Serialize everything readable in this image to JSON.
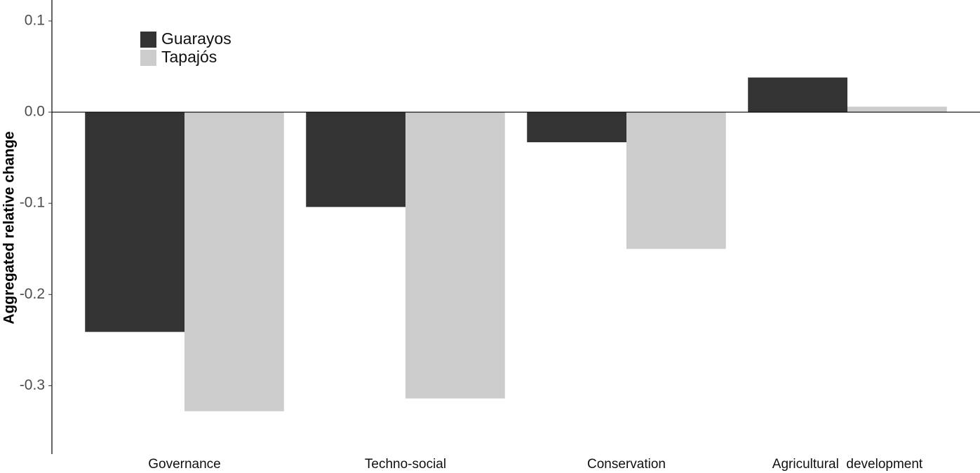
{
  "chart_data": {
    "type": "bar",
    "y_label": "Aggregated  relative  change",
    "categories": [
      "Governance",
      "Techno-social",
      "Conservation",
      "Agricultural  development"
    ],
    "series": [
      {
        "name": "Guarayos",
        "color": "#333333",
        "values": [
          -0.241,
          -0.104,
          -0.033,
          0.038
        ]
      },
      {
        "name": "Tapajós",
        "color": "#cccccc",
        "values": [
          -0.328,
          -0.314,
          -0.15,
          0.006
        ]
      }
    ],
    "ylim": [
      -0.375,
      0.123
    ],
    "yticks": [
      -0.3,
      -0.2,
      -0.1,
      {
        "value": 0,
        "label": "0.0"
      },
      0.1
    ],
    "zero_line": true,
    "legend": "top-left"
  }
}
